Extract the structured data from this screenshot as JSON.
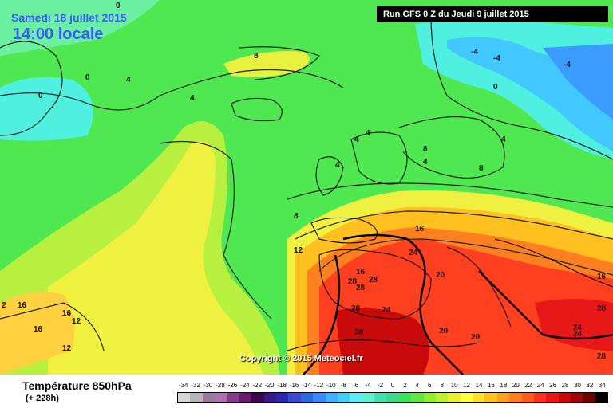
{
  "header": {
    "date_line": "Samedi 18 juillet 2015",
    "time_line": "14:00 locale",
    "run_label": "Run GFS 0 Z du Jeudi 9 juillet 2015"
  },
  "map": {
    "copyright": "Copyright © 2015 Meteociel.fr",
    "contour_labels": [
      "0",
      "0",
      "0",
      "4",
      "4",
      "8",
      "4",
      "4",
      "-4",
      "-4",
      "-4",
      "0",
      "4",
      "4",
      "8",
      "4",
      "8",
      "8",
      "12",
      "16",
      "16",
      "24",
      "20",
      "16",
      "28",
      "28",
      "28",
      "28",
      "24",
      "28",
      "20",
      "20",
      "28",
      "28",
      "24",
      "24",
      "2",
      "16",
      "16",
      "16",
      "12",
      "12"
    ]
  },
  "legend": {
    "title": "Température 850hPa",
    "subtitle": "(+ 228h)",
    "scale_values": [
      "-34",
      "-32",
      "-30",
      "-28",
      "-26",
      "-24",
      "-22",
      "-20",
      "-18",
      "-16",
      "-14",
      "-12",
      "-10",
      "-8",
      "-6",
      "-4",
      "-2",
      "0",
      "2",
      "4",
      "6",
      "8",
      "10",
      "12",
      "14",
      "16",
      "18",
      "20",
      "22",
      "24",
      "26",
      "28",
      "30",
      "32",
      "34"
    ],
    "scale_colors": [
      "#d6d6d6",
      "#b4b4b4",
      "#9a7a9a",
      "#b070b0",
      "#8a3a8a",
      "#6a1a6a",
      "#3a0a4a",
      "#3a1a8a",
      "#2a2ab0",
      "#3a4ad0",
      "#2a6ae0",
      "#3a8aff",
      "#40b0ff",
      "#40d0ff",
      "#60e8ff",
      "#60f0d0",
      "#40e0b0",
      "#40d890",
      "#40e060",
      "#60e840",
      "#90f030",
      "#c0f030",
      "#e8f030",
      "#ffff40",
      "#ffe030",
      "#ffc020",
      "#ffa020",
      "#ff8020",
      "#ff5a20",
      "#ff3020",
      "#e81818",
      "#c80a0a",
      "#a00808",
      "#700000",
      "#000000"
    ]
  },
  "colors": {
    "header_text": "#3a5cff",
    "run_box_bg": "#000000"
  }
}
